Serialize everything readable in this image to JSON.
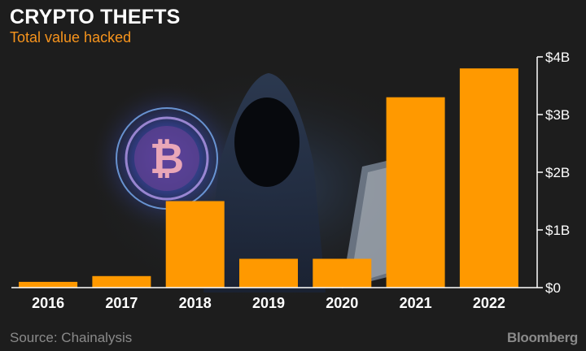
{
  "header": {
    "title": "CRYPTO THEFTS",
    "subtitle": "Total value hacked"
  },
  "footer": {
    "source": "Source: Chainalysis",
    "brand": "Bloomberg"
  },
  "colors": {
    "bar": "#ff9900",
    "subtitle": "#f7941d",
    "text": "#ffffff",
    "muted": "#8a8a8a"
  },
  "chart_data": {
    "type": "bar",
    "title": "CRYPTO THEFTS",
    "subtitle": "Total value hacked",
    "categories": [
      "2016",
      "2017",
      "2018",
      "2019",
      "2020",
      "2021",
      "2022"
    ],
    "values": [
      0.1,
      0.2,
      1.5,
      0.5,
      0.5,
      3.3,
      3.8
    ],
    "unit": "billions USD",
    "ylim": [
      0,
      4
    ],
    "yticks": [
      0,
      1,
      2,
      3,
      4
    ],
    "ytick_labels": [
      "$0",
      "$1B",
      "$2B",
      "$3B",
      "$4B"
    ],
    "xlabel": "",
    "ylabel": "",
    "y_axis_side": "right",
    "grid": false,
    "legend": "none"
  }
}
